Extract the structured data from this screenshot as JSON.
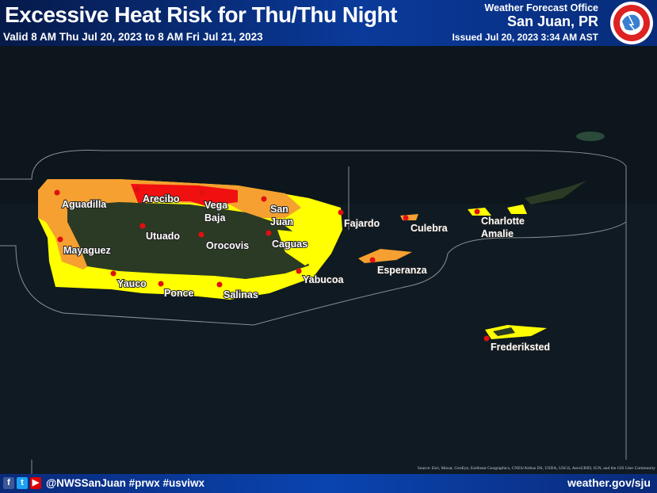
{
  "header": {
    "title": "Excessive Heat Risk for Thu/Thu Night",
    "valid": "Valid 8 AM Thu Jul 20, 2023 to 8 AM Fri Jul 21, 2023",
    "office_label": "Weather Forecast Office",
    "office": "San Juan, PR",
    "issued": "Issued Jul 20, 2023 3:34 AM AST",
    "logo_text": "NATIONAL WEATHER SERVICE"
  },
  "map": {
    "colors": {
      "red": "#f01010",
      "orange": "#f5a030",
      "yellow": "#ffff00",
      "land": "#2b3a24",
      "ocean": "#0f1a22"
    },
    "cities": [
      {
        "name": "Aguadilla"
      },
      {
        "name": "Arecibo"
      },
      {
        "name": "Vega",
        "name2": "Baja"
      },
      {
        "name": "San",
        "name2": "Juan"
      },
      {
        "name": "Fajardo"
      },
      {
        "name": "Culebra"
      },
      {
        "name": "Charlotte",
        "name2": "Amalie"
      },
      {
        "name": "Mayaguez"
      },
      {
        "name": "Utuado"
      },
      {
        "name": "Orocovis"
      },
      {
        "name": "Caguas"
      },
      {
        "name": "Yauco"
      },
      {
        "name": "Ponce"
      },
      {
        "name": "Salinas"
      },
      {
        "name": "Yabucoa"
      },
      {
        "name": "Esperanza"
      },
      {
        "name": "Frederiksted"
      }
    ],
    "source": "Source: Esri, Maxar, GeoEye, Earthstar Geographics, CNES/Airbus DS, USDA, USGS, AeroGRID, IGN, and the GIS User Community"
  },
  "footer": {
    "social_icons": [
      "facebook-icon",
      "twitter-icon",
      "youtube-icon"
    ],
    "handle": "@NWSSanJuan #prwx #usviwx",
    "site": "weather.gov/sju"
  }
}
